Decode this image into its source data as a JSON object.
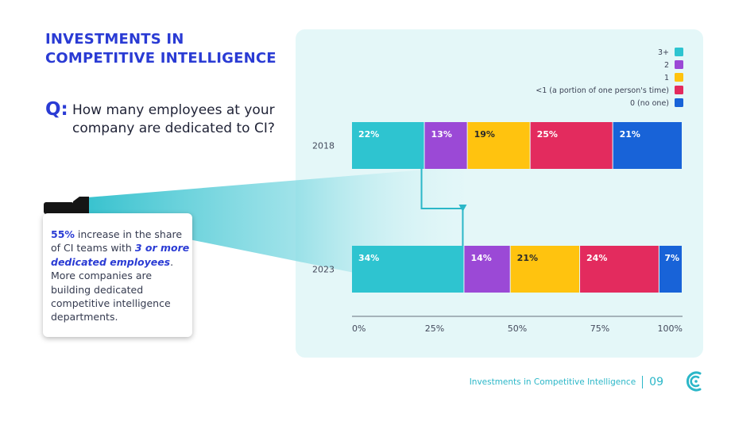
{
  "header": {
    "title_line1": "INVESTMENTS IN",
    "title_line2": "COMPETITIVE INTELLIGENCE"
  },
  "question": {
    "label": "Q:",
    "text": "How many employees at your company are dedicated to CI?"
  },
  "callout": {
    "pct": "55%",
    "text_a": " increase in the share of CI teams with ",
    "emphasis": "3 or more dedicated employees",
    "text_b": ". More companies are building dedicated competitive intelligence departments."
  },
  "footer": {
    "text": "Investments in Competitive Intelligence",
    "page": "09"
  },
  "chart_data": {
    "type": "bar",
    "orientation": "horizontal",
    "stacked": true,
    "categories": [
      "2018",
      "2023"
    ],
    "series": [
      {
        "name": "3+",
        "color": "#2ec4d0",
        "values": [
          22,
          34
        ],
        "labels": [
          "22%",
          "34%"
        ]
      },
      {
        "name": "2",
        "color": "#9b49d6",
        "values": [
          13,
          14
        ],
        "labels": [
          "13%",
          "14%"
        ]
      },
      {
        "name": "1",
        "color": "#ffc30f",
        "values": [
          19,
          21
        ],
        "labels": [
          "19%",
          "21%"
        ]
      },
      {
        "name": "<1 (a portion of one person's time)",
        "color": "#e32b5e",
        "values": [
          25,
          24
        ],
        "labels": [
          "25%",
          "24%"
        ]
      },
      {
        "name": "0 (no one)",
        "color": "#1863d8",
        "values": [
          21,
          7
        ],
        "labels": [
          "21%",
          "7%"
        ]
      }
    ],
    "x_ticks": [
      "0%",
      "25%",
      "50%",
      "75%",
      "100%"
    ],
    "xlim": [
      0,
      100
    ],
    "legend_position": "top-right"
  }
}
